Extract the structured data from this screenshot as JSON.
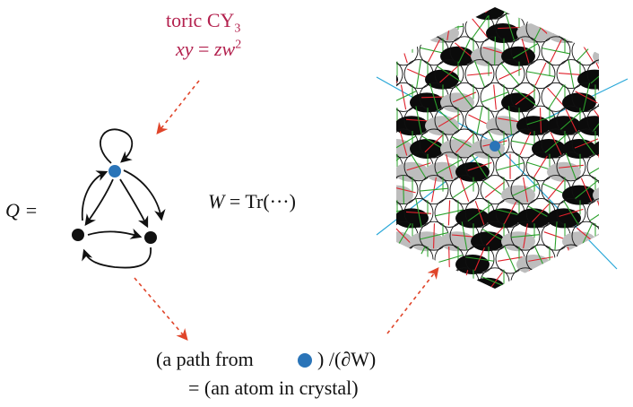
{
  "header": {
    "line1_text": "toric CY",
    "line1_sub": "3",
    "line2_lhs": "xy",
    "line2_eq": " = ",
    "line2_rhs": "zw",
    "line2_sup": "2"
  },
  "quiver": {
    "label": "Q =",
    "node_count": 3,
    "marked_node_color": "#2a74b8",
    "node_color": "#111111"
  },
  "superpotential": {
    "lhs": "W",
    "rhs": " = Tr(···)"
  },
  "footer": {
    "line1_prefix": "(a path from",
    "line1_suffix": ") /(∂W)",
    "line2": "= (an atom in crystal)"
  },
  "colors": {
    "accent_text": "#b3214e",
    "arrow_red": "#e0452a",
    "crystal_red": "#e0202a",
    "crystal_green": "#2aa02a",
    "crystal_cyan": "#2aa8d8",
    "crystal_gray": "#bdbdbd",
    "crystal_black": "#0b0b0b",
    "marker_blue": "#2a74b8"
  }
}
